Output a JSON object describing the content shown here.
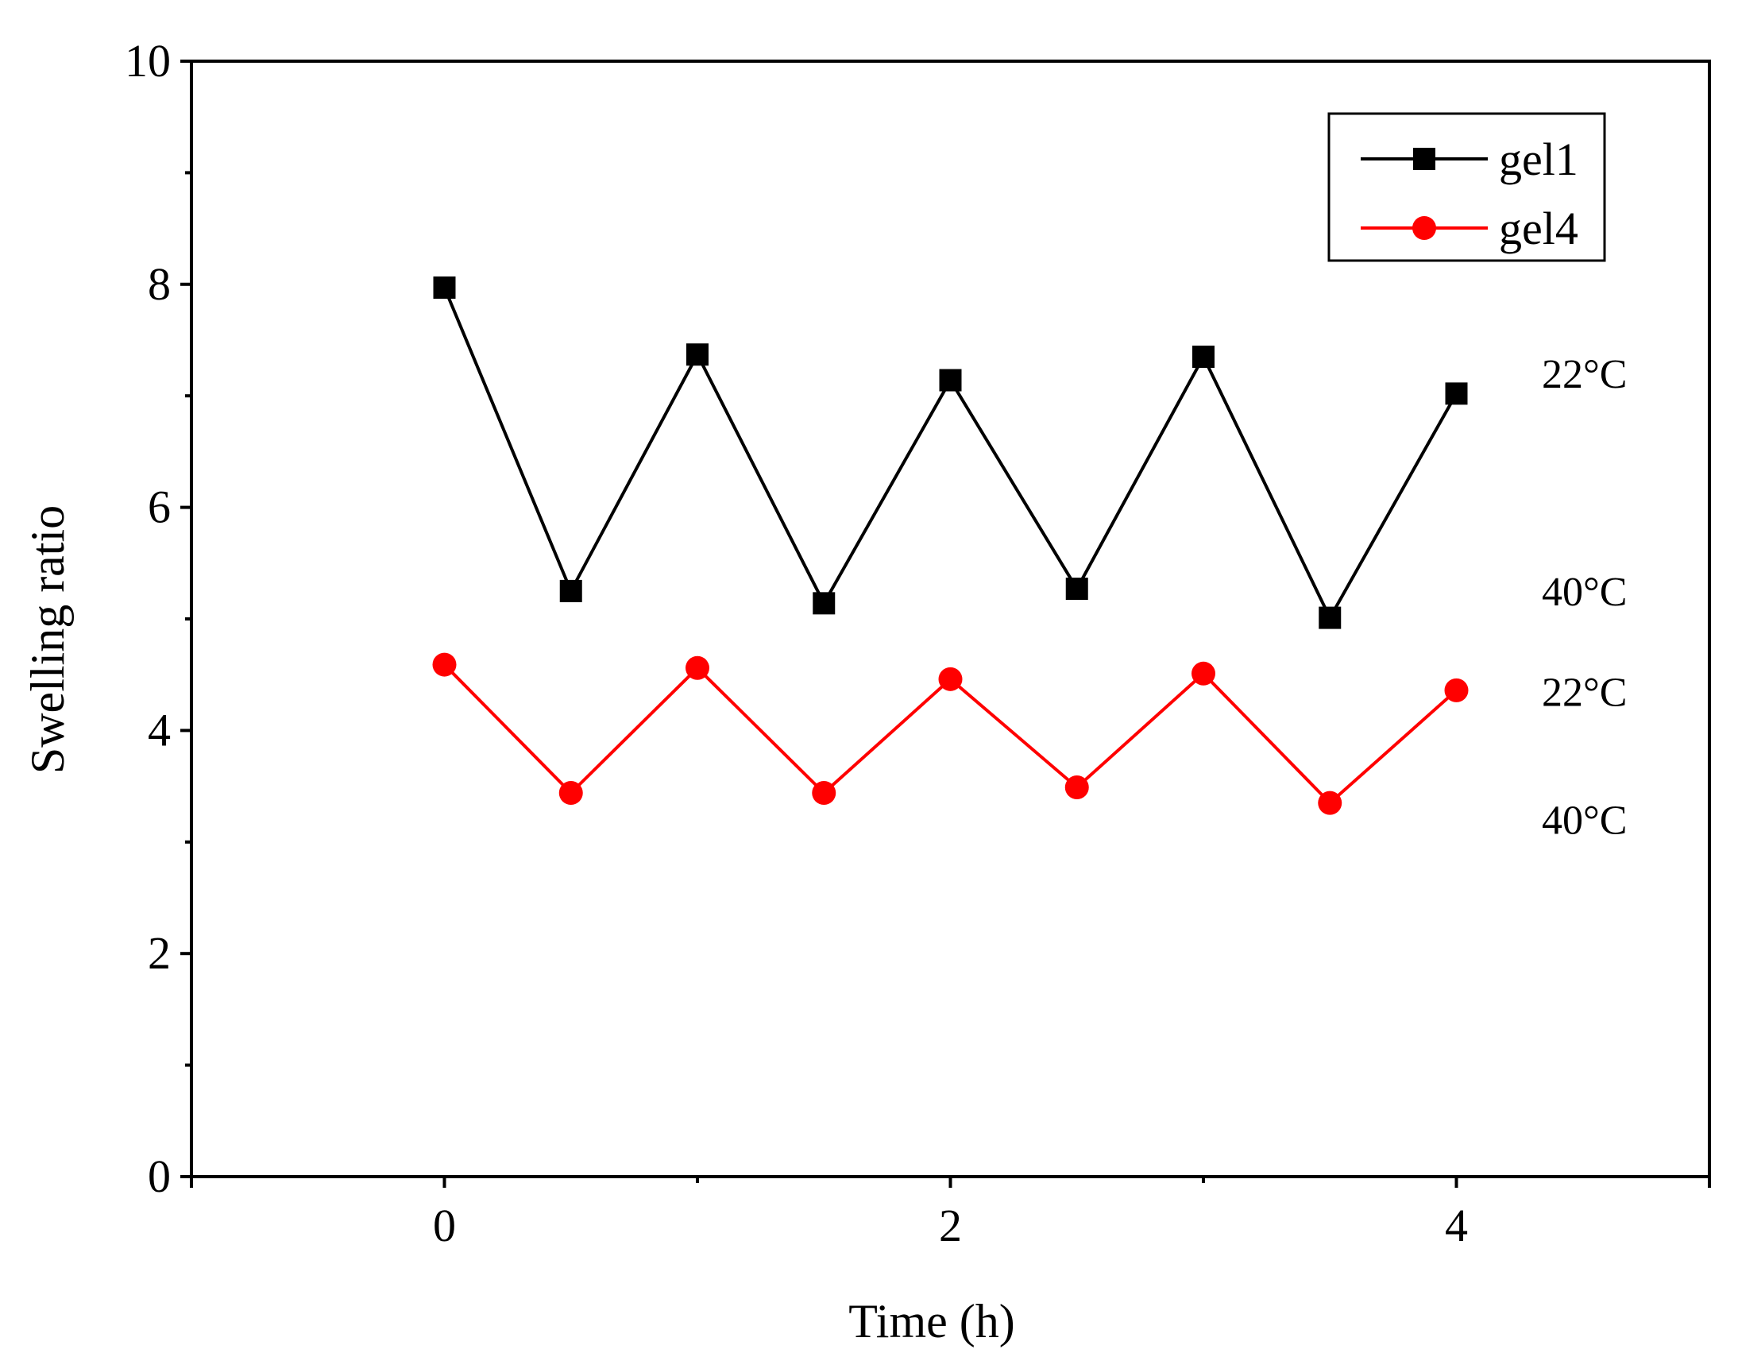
{
  "chart_data": {
    "type": "line",
    "title": "",
    "xlabel": "Time (h)",
    "ylabel": "Swelling ratio",
    "xlim": [
      -1,
      5
    ],
    "ylim": [
      0,
      10
    ],
    "x_ticks": [
      0,
      2,
      4
    ],
    "y_ticks": [
      0,
      2,
      4,
      6,
      8,
      10
    ],
    "grid": false,
    "legend_position": "top-right",
    "x": [
      0,
      0.5,
      1,
      1.5,
      2,
      2.5,
      3,
      3.5,
      4
    ],
    "series": [
      {
        "name": "gel1",
        "color": "#000000",
        "marker": "square",
        "values": [
          7.97,
          5.25,
          7.37,
          5.14,
          7.14,
          5.27,
          7.35,
          5.01,
          7.02
        ]
      },
      {
        "name": "gel4",
        "color": "#ff0000",
        "marker": "circle",
        "values": [
          4.59,
          3.44,
          4.56,
          3.44,
          4.46,
          3.49,
          4.51,
          3.35,
          4.36
        ]
      }
    ],
    "annotations": [
      {
        "text": "22°C",
        "x": 4.5,
        "y": 7.2
      },
      {
        "text": "40°C",
        "x": 4.5,
        "y": 5.25
      },
      {
        "text": "22°C",
        "x": 4.5,
        "y": 4.35
      },
      {
        "text": "40°C",
        "x": 4.5,
        "y": 3.2
      }
    ]
  }
}
